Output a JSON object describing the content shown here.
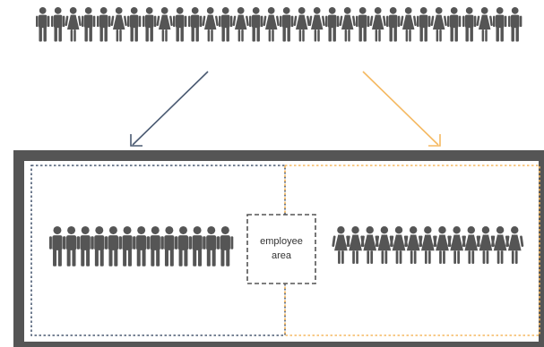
{
  "diagram": {
    "crowd": {
      "count": 32
    },
    "left_group": {
      "count": 13,
      "arrow_color": "#4a5a72",
      "border_color": "#4a5a72"
    },
    "right_group": {
      "count": 13,
      "arrow_color": "#f5b961",
      "border_color": "#f5b961"
    },
    "frame_color": "#555555",
    "figure_color": "#555555",
    "center_box": {
      "line1": "employee",
      "line2": "area"
    }
  }
}
